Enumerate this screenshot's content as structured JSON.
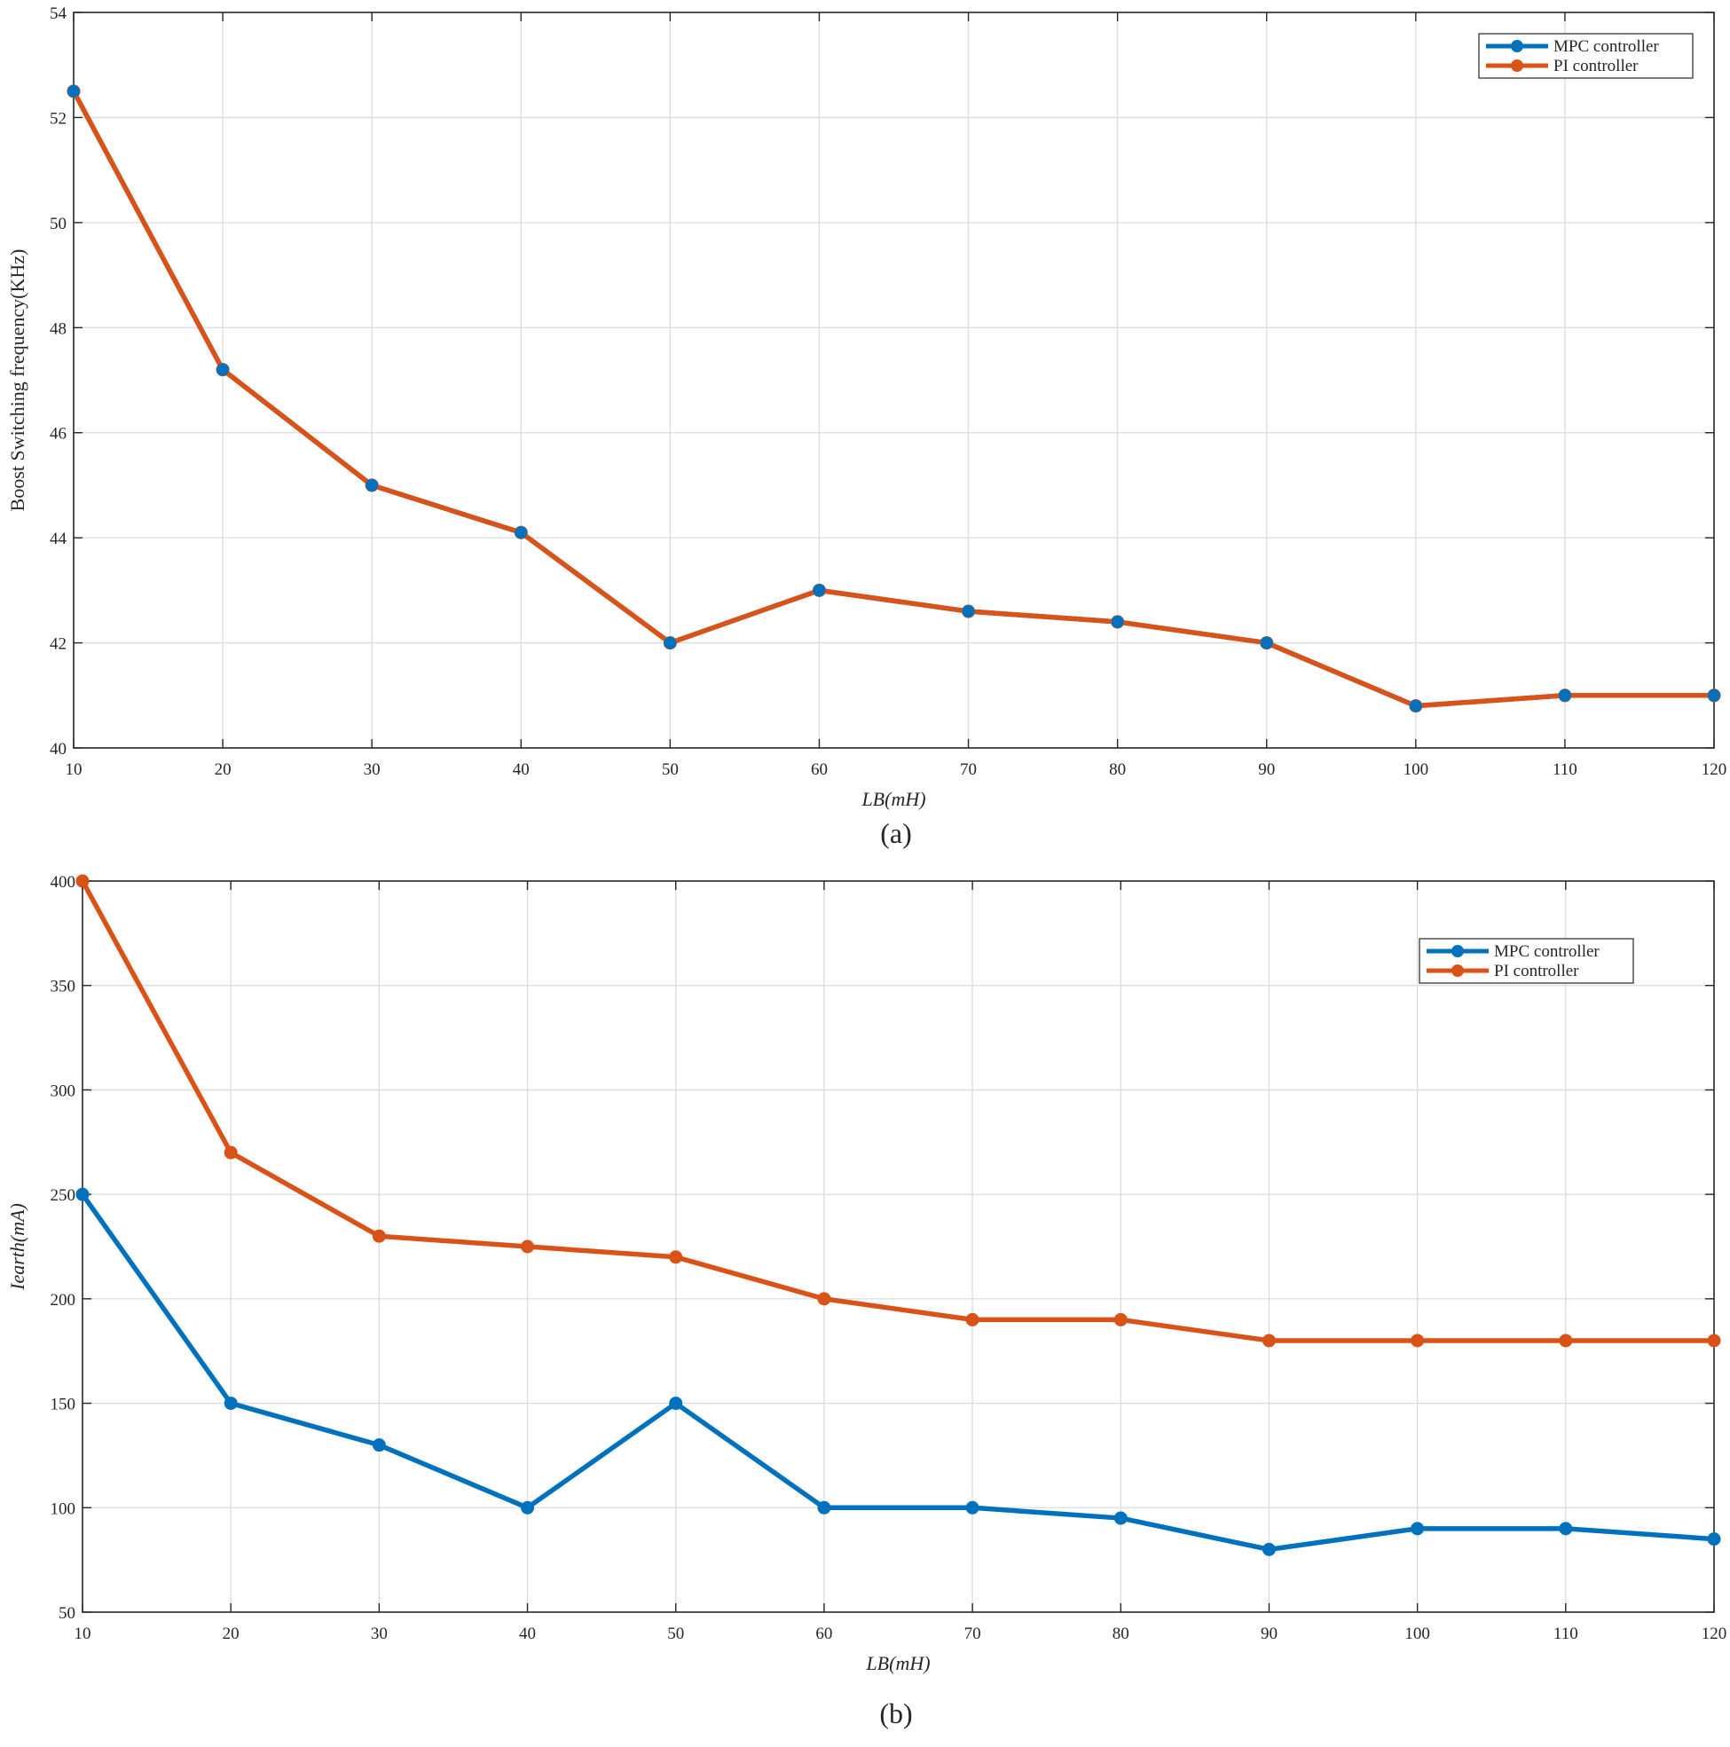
{
  "chart_data": [
    {
      "panel": "a",
      "type": "line",
      "caption": "(a)",
      "xlabel": "LB(mH)",
      "ylabel": "Boost Switching frequency(KHz)",
      "xlim": [
        10,
        120
      ],
      "ylim": [
        40,
        54
      ],
      "xticks": [
        10,
        20,
        30,
        40,
        50,
        60,
        70,
        80,
        90,
        100,
        110,
        120
      ],
      "yticks": [
        40,
        42,
        44,
        46,
        48,
        50,
        52,
        54
      ],
      "grid": true,
      "legend_position": "top-right",
      "x": [
        10,
        20,
        30,
        40,
        50,
        60,
        70,
        80,
        90,
        100,
        110,
        120
      ],
      "series": [
        {
          "name": "MPC controller",
          "color": "#0072BD",
          "values": [
            52.5,
            47.2,
            45.0,
            44.1,
            42.0,
            43.0,
            42.6,
            42.4,
            42.0,
            40.8,
            41.0,
            41.0
          ]
        },
        {
          "name": "PI controller",
          "color": "#D95319",
          "values": [
            52.5,
            47.2,
            45.0,
            44.1,
            42.0,
            43.0,
            42.6,
            42.4,
            42.0,
            40.8,
            41.0,
            41.0
          ]
        }
      ]
    },
    {
      "panel": "b",
      "type": "line",
      "caption": "(b)",
      "xlabel": "LB(mH)",
      "ylabel": "Iearth(mA)",
      "xlim": [
        10,
        120
      ],
      "ylim": [
        50,
        400
      ],
      "xticks": [
        10,
        20,
        30,
        40,
        50,
        60,
        70,
        80,
        90,
        100,
        110,
        120
      ],
      "yticks": [
        50,
        100,
        150,
        200,
        250,
        300,
        350,
        400
      ],
      "grid": true,
      "legend_position": "top-right",
      "x": [
        10,
        20,
        30,
        40,
        50,
        60,
        70,
        80,
        90,
        100,
        110,
        120
      ],
      "series": [
        {
          "name": "MPC controller",
          "color": "#0072BD",
          "values": [
            250,
            150,
            130,
            100,
            150,
            100,
            100,
            95,
            80,
            90,
            90,
            85
          ]
        },
        {
          "name": "PI controller",
          "color": "#D95319",
          "values": [
            400,
            270,
            230,
            225,
            220,
            200,
            190,
            190,
            180,
            180,
            180,
            180
          ]
        }
      ]
    }
  ]
}
